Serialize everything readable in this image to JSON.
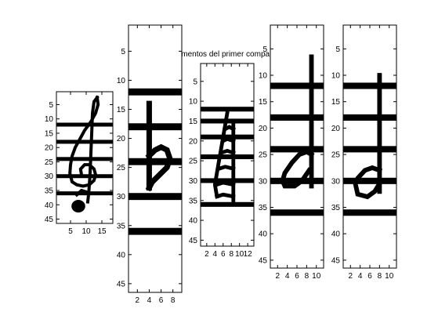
{
  "figure": {
    "title": "elementos del primer compa"
  },
  "chart_data": [
    {
      "type": "heatmap",
      "colormap": "gray",
      "xlim": [
        0.5,
        18.5
      ],
      "ylim": [
        46.5,
        0.5
      ],
      "xticks": [
        5,
        10,
        15
      ],
      "yticks": [
        5,
        10,
        15,
        20,
        25,
        30,
        35,
        40,
        45
      ],
      "staff_rows": [
        12,
        18,
        24,
        30,
        36
      ],
      "ink_strokes": [
        [
          [
            13.5,
            2.5
          ],
          [
            13.8,
            5
          ],
          [
            13,
            8
          ],
          [
            11.5,
            11
          ],
          [
            9.5,
            14
          ],
          [
            8,
            17
          ],
          [
            6.5,
            20
          ],
          [
            5.5,
            23
          ],
          [
            5,
            26
          ],
          [
            4.8,
            29
          ],
          [
            5.5,
            32
          ],
          [
            7,
            33
          ],
          [
            9,
            33.5
          ],
          [
            11,
            33
          ],
          [
            12.5,
            31.5
          ],
          [
            13,
            29.5
          ],
          [
            12.5,
            27.5
          ],
          [
            11,
            26
          ],
          [
            9.5,
            26
          ],
          [
            8.2,
            27.5
          ],
          [
            8.5,
            29.5
          ]
        ],
        [
          [
            13.5,
            2.5
          ],
          [
            12.5,
            4
          ],
          [
            12,
            8
          ],
          [
            11.8,
            14
          ],
          [
            11.5,
            22
          ],
          [
            11.2,
            30
          ],
          [
            10.8,
            36
          ],
          [
            10.5,
            39
          ]
        ],
        [
          [
            7,
            36.5
          ],
          [
            8.5,
            35
          ],
          [
            10,
            35.5
          ],
          [
            10.5,
            36
          ]
        ]
      ],
      "blobs": [
        {
          "x": 7.5,
          "y": 40.5,
          "r": 2.2
        }
      ]
    },
    {
      "type": "heatmap",
      "colormap": "gray",
      "xlim": [
        0.5,
        9.5
      ],
      "ylim": [
        46.5,
        0.5
      ],
      "xticks": [
        2,
        4,
        6,
        8
      ],
      "yticks": [
        5,
        10,
        15,
        20,
        25,
        30,
        35,
        40,
        45
      ],
      "staff_rows": [
        12,
        18,
        24,
        30,
        36
      ],
      "ink_strokes": [
        [
          [
            4,
            14
          ],
          [
            4,
            28.5
          ]
        ],
        [
          [
            4,
            23
          ],
          [
            5,
            22
          ],
          [
            6,
            21.5
          ],
          [
            7,
            22
          ],
          [
            7.5,
            23.5
          ],
          [
            7,
            25
          ],
          [
            6,
            26
          ],
          [
            4.5,
            27.5
          ],
          [
            4,
            28.5
          ]
        ]
      ],
      "blobs": []
    },
    {
      "type": "heatmap",
      "colormap": "gray",
      "xlim": [
        0.5,
        13.5
      ],
      "ylim": [
        46.5,
        0.5
      ],
      "xticks": [
        2,
        4,
        6,
        8,
        10,
        12
      ],
      "yticks": [
        5,
        10,
        15,
        20,
        25,
        30,
        35,
        40,
        45
      ],
      "staff_rows": [
        12,
        15,
        19,
        24,
        30,
        36
      ],
      "ink_strokes": [
        [
          [
            7,
            13
          ],
          [
            6.5,
            16
          ],
          [
            6,
            19
          ],
          [
            5.5,
            22
          ],
          [
            5,
            25
          ],
          [
            4.5,
            28
          ],
          [
            4,
            31
          ],
          [
            4.5,
            34
          ]
        ],
        [
          [
            8.5,
            16
          ],
          [
            8.5,
            36
          ]
        ],
        [
          [
            6.5,
            17
          ],
          [
            7.5,
            16.5
          ],
          [
            8.5,
            17
          ]
        ],
        [
          [
            6,
            20
          ],
          [
            7,
            19.5
          ],
          [
            8.5,
            20
          ]
        ],
        [
          [
            5.5,
            23
          ],
          [
            7,
            22.5
          ],
          [
            8.5,
            23
          ]
        ],
        [
          [
            5,
            27
          ],
          [
            6.5,
            26.5
          ],
          [
            8.5,
            27
          ]
        ],
        [
          [
            4.5,
            31
          ],
          [
            6,
            30.5
          ],
          [
            8.5,
            31
          ]
        ],
        [
          [
            4.5,
            34
          ],
          [
            6,
            33.5
          ],
          [
            8.5,
            34
          ]
        ]
      ],
      "blobs": []
    },
    {
      "type": "heatmap",
      "colormap": "gray",
      "xlim": [
        0.5,
        11.5
      ],
      "ylim": [
        46.5,
        0.5
      ],
      "xticks": [
        2,
        4,
        6,
        8,
        10
      ],
      "yticks": [
        5,
        10,
        15,
        20,
        25,
        30,
        35,
        40,
        45
      ],
      "staff_rows": [
        12,
        18,
        24,
        30,
        36
      ],
      "ink_strokes": [
        [
          [
            9,
            6.5
          ],
          [
            9,
            31
          ]
        ],
        [
          [
            9,
            25
          ],
          [
            8,
            24.5
          ],
          [
            6.5,
            25
          ],
          [
            5,
            26.5
          ],
          [
            3.5,
            28.5
          ],
          [
            3,
            30
          ],
          [
            3.5,
            31
          ],
          [
            5.5,
            31
          ],
          [
            7,
            30
          ],
          [
            8.5,
            28
          ]
        ]
      ],
      "blobs": []
    },
    {
      "type": "heatmap",
      "colormap": "gray",
      "xlim": [
        0.5,
        11.5
      ],
      "ylim": [
        46.5,
        0.5
      ],
      "xticks": [
        2,
        4,
        6,
        8,
        10
      ],
      "yticks": [
        5,
        10,
        15,
        20,
        25,
        30,
        35,
        40,
        45
      ],
      "staff_rows": [
        12,
        18,
        24,
        30,
        36
      ],
      "ink_strokes": [
        [
          [
            8,
            10
          ],
          [
            8,
            32
          ]
        ],
        [
          [
            8,
            28
          ],
          [
            6.5,
            27.5
          ],
          [
            5,
            28
          ],
          [
            3.5,
            29.5
          ],
          [
            3,
            30.5
          ],
          [
            3.5,
            32.5
          ],
          [
            5.5,
            33
          ],
          [
            7,
            32
          ],
          [
            8,
            30.5
          ]
        ]
      ],
      "blobs": []
    }
  ]
}
